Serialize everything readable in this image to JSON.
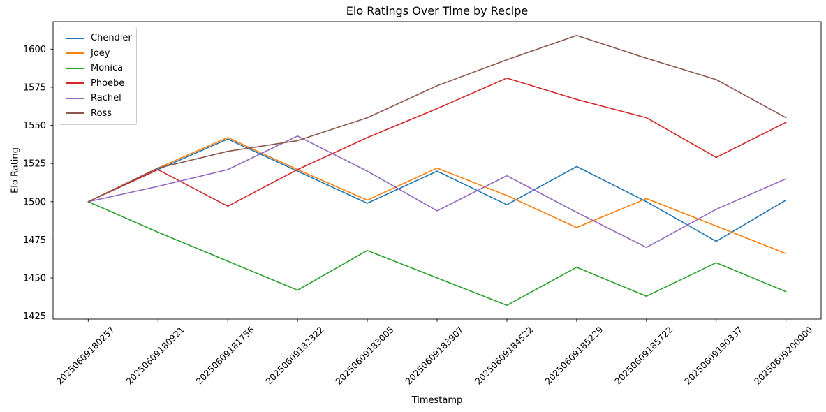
{
  "chart_data": {
    "type": "line",
    "title": "Elo Ratings Over Time by Recipe",
    "xlabel": "Timestamp",
    "ylabel": "Elo Rating",
    "categories": [
      "20250609180257",
      "20250609180921",
      "20250609181756",
      "20250609182322",
      "20250609183005",
      "20250609183907",
      "20250609184522",
      "20250609185229",
      "20250609185722",
      "20250609190337",
      "20250609200000"
    ],
    "yticks": [
      1425,
      1450,
      1475,
      1500,
      1525,
      1550,
      1575,
      1600
    ],
    "ylim": [
      1423,
      1618
    ],
    "grid": false,
    "legend_position": "upper left",
    "series": [
      {
        "name": "Chendler",
        "color": "#1f77b4",
        "values": [
          1500,
          1521,
          1541,
          1520,
          1499,
          1520,
          1498,
          1523,
          1500,
          1474,
          1501
        ]
      },
      {
        "name": "Joey",
        "color": "#ff7f0e",
        "values": [
          1500,
          1522,
          1542,
          1521,
          1501,
          1522,
          1504,
          1483,
          1502,
          1484,
          1466
        ]
      },
      {
        "name": "Monica",
        "color": "#2ca02c",
        "values": [
          1500,
          1480,
          1461,
          1442,
          1468,
          1450,
          1432,
          1457,
          1438,
          1460,
          1441
        ]
      },
      {
        "name": "Phoebe",
        "color": "#d62728",
        "values": [
          1500,
          1521,
          1497,
          1521,
          1542,
          1561,
          1581,
          1567,
          1555,
          1529,
          1552
        ]
      },
      {
        "name": "Rachel",
        "color": "#9467bd",
        "values": [
          1500,
          1510,
          1521,
          1543,
          1520,
          1494,
          1517,
          1493,
          1470,
          1495,
          1515
        ]
      },
      {
        "name": "Ross",
        "color": "#8c564b",
        "values": [
          1500,
          1522,
          1533,
          1540,
          1555,
          1576,
          1593,
          1609,
          1594,
          1580,
          1555
        ]
      }
    ]
  }
}
